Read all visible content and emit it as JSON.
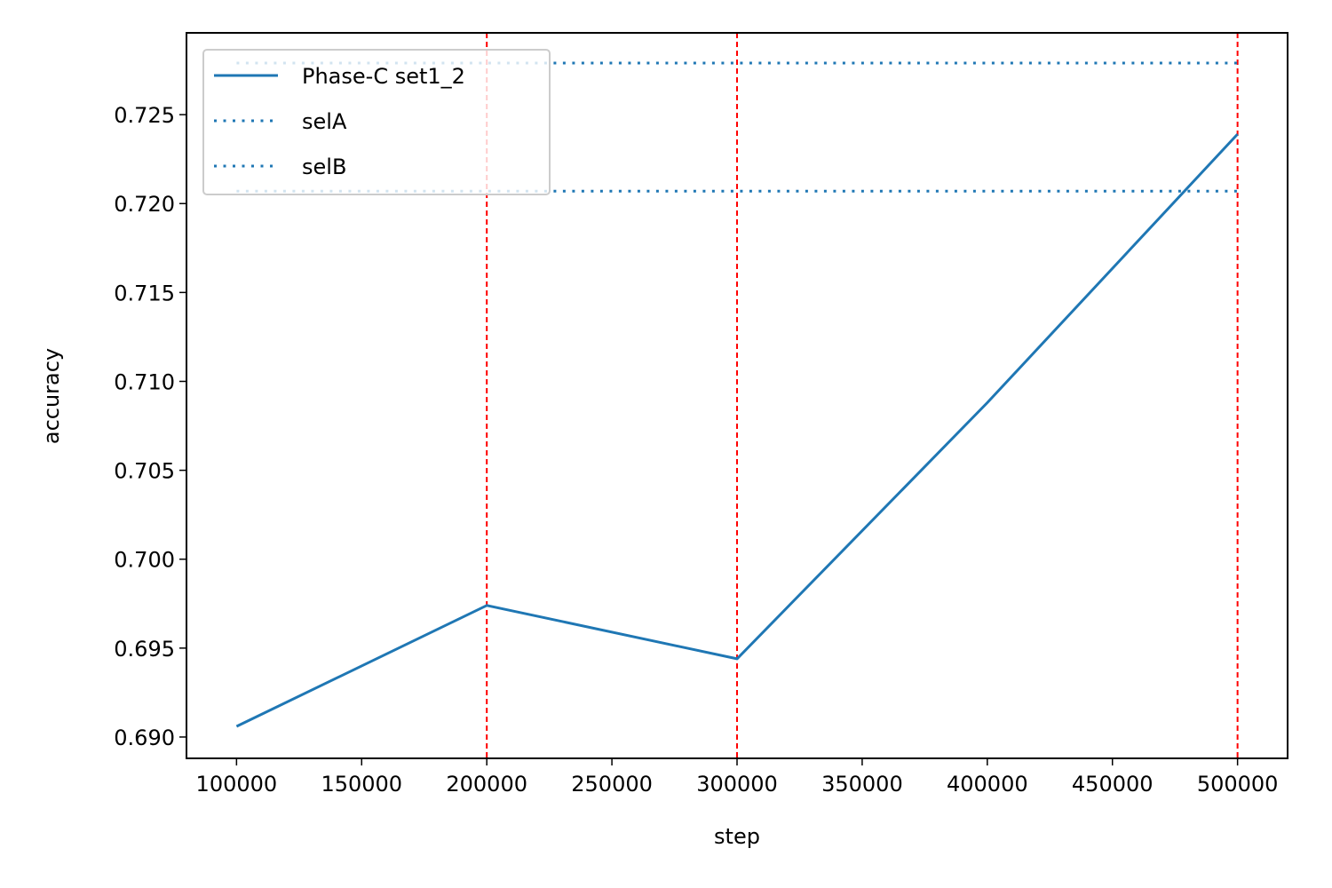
{
  "chart_data": {
    "type": "line",
    "xlabel": "step",
    "ylabel": "accuracy",
    "xlim": [
      80000,
      520000
    ],
    "ylim": [
      0.6888,
      0.7296
    ],
    "xticks": [
      100000,
      150000,
      200000,
      250000,
      300000,
      350000,
      400000,
      450000,
      500000
    ],
    "xtick_labels": [
      "100000",
      "150000",
      "200000",
      "250000",
      "300000",
      "350000",
      "400000",
      "450000",
      "500000"
    ],
    "yticks": [
      0.69,
      0.695,
      0.7,
      0.705,
      0.71,
      0.715,
      0.72,
      0.725
    ],
    "ytick_labels": [
      "0.690",
      "0.695",
      "0.700",
      "0.705",
      "0.710",
      "0.715",
      "0.720",
      "0.725"
    ],
    "grid": false,
    "legend_position": "upper-left",
    "series": [
      {
        "name": "Phase-C set1_2",
        "style": "solid",
        "color": "#1f77b4",
        "x": [
          100000,
          200000,
          300000,
          400000,
          500000
        ],
        "y": [
          0.6906,
          0.6974,
          0.6944,
          0.7088,
          0.7239
        ]
      },
      {
        "name": "selA",
        "style": "dotted",
        "color": "#1f77b4",
        "x": [
          100000,
          500000
        ],
        "y": [
          0.7279,
          0.7279
        ]
      },
      {
        "name": "selB",
        "style": "dotted",
        "color": "#1f77b4",
        "x": [
          100000,
          500000
        ],
        "y": [
          0.7207,
          0.7207
        ]
      }
    ],
    "vlines": {
      "x": [
        200000,
        300000,
        500000
      ],
      "color": "#ff0000",
      "style": "dashed"
    }
  }
}
